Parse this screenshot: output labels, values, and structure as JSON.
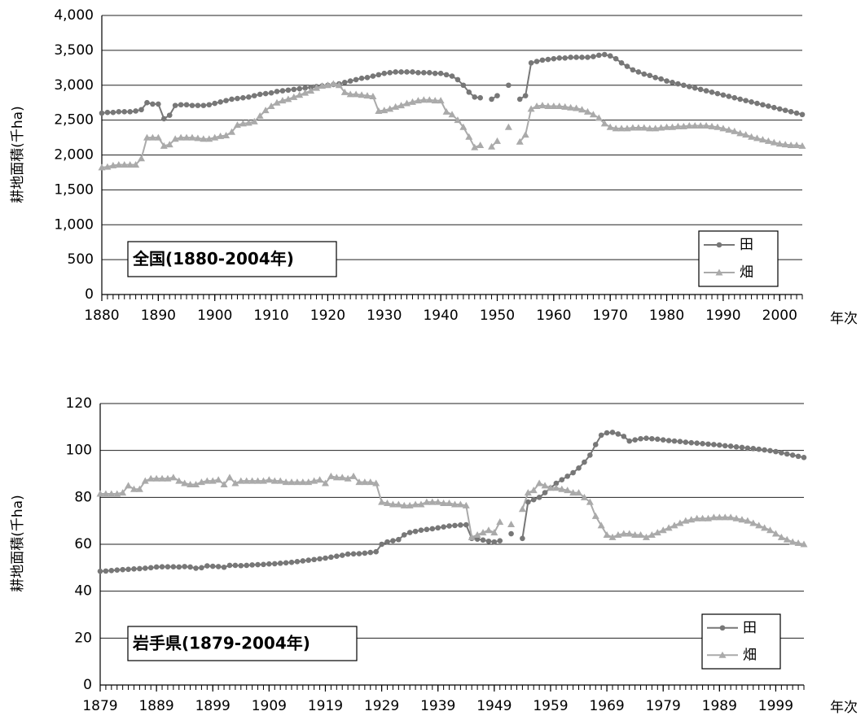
{
  "chart_data": [
    {
      "type": "line",
      "annotation": "全国(1880-2004年)",
      "xlabel": "年次",
      "ylabel": "耕地面積(千ha)",
      "xlim": [
        1880,
        2004
      ],
      "xticks": [
        1880,
        1890,
        1900,
        1910,
        1920,
        1930,
        1940,
        1950,
        1960,
        1970,
        1980,
        1990,
        2000
      ],
      "ylim": [
        0,
        4000
      ],
      "yticks": [
        0,
        500,
        {
          "value": 1000,
          "label": "1,000"
        },
        {
          "value": 1500,
          "label": "1,500"
        },
        {
          "value": 2000,
          "label": "2,000"
        },
        {
          "value": 2500,
          "label": "2,500"
        },
        {
          "value": 3000,
          "label": "3,000"
        },
        {
          "value": 3500,
          "label": "3,500"
        },
        {
          "value": 4000,
          "label": "4,000"
        }
      ],
      "grid": true,
      "legend": "lower right",
      "x": [
        1880,
        1881,
        1882,
        1883,
        1884,
        1885,
        1886,
        1887,
        1888,
        1889,
        1890,
        1891,
        1892,
        1893,
        1894,
        1895,
        1896,
        1897,
        1898,
        1899,
        1900,
        1901,
        1902,
        1903,
        1904,
        1905,
        1906,
        1907,
        1908,
        1909,
        1910,
        1911,
        1912,
        1913,
        1914,
        1915,
        1916,
        1917,
        1918,
        1919,
        1920,
        1921,
        1922,
        1923,
        1924,
        1925,
        1926,
        1927,
        1928,
        1929,
        1930,
        1931,
        1932,
        1933,
        1934,
        1935,
        1936,
        1937,
        1938,
        1939,
        1940,
        1941,
        1942,
        1943,
        1944,
        1945,
        1946,
        1947,
        1948,
        1949,
        1950,
        1951,
        1952,
        1953,
        1954,
        1955,
        1956,
        1957,
        1958,
        1959,
        1960,
        1961,
        1962,
        1963,
        1964,
        1965,
        1966,
        1967,
        1968,
        1969,
        1970,
        1971,
        1972,
        1973,
        1974,
        1975,
        1976,
        1977,
        1978,
        1979,
        1980,
        1981,
        1982,
        1983,
        1984,
        1985,
        1986,
        1987,
        1988,
        1989,
        1990,
        1991,
        1992,
        1993,
        1994,
        1995,
        1996,
        1997,
        1998,
        1999,
        2000,
        2001,
        2002,
        2003,
        2004
      ],
      "series": [
        {
          "name": "田",
          "color": "#777777",
          "marker": "circle",
          "values": [
            2600,
            2610,
            2610,
            2620,
            2620,
            2620,
            2630,
            2650,
            2750,
            2730,
            2730,
            2520,
            2570,
            2710,
            2720,
            2720,
            2710,
            2710,
            2710,
            2720,
            2740,
            2760,
            2780,
            2800,
            2810,
            2820,
            2830,
            2850,
            2870,
            2880,
            2890,
            2910,
            2920,
            2930,
            2940,
            2950,
            2960,
            2970,
            2980,
            2990,
            3000,
            3010,
            3020,
            3040,
            3060,
            3080,
            3100,
            3110,
            3130,
            3150,
            3170,
            3180,
            3190,
            3190,
            3190,
            3190,
            3180,
            3180,
            3180,
            3170,
            3170,
            3150,
            3130,
            3080,
            3000,
            2900,
            2830,
            2820,
            null,
            2800,
            2850,
            null,
            3000,
            null,
            2800,
            2850,
            3320,
            3340,
            3360,
            3370,
            3380,
            3390,
            3390,
            3400,
            3400,
            3400,
            3400,
            3410,
            3430,
            3440,
            3420,
            3380,
            3320,
            3270,
            3220,
            3190,
            3160,
            3140,
            3110,
            3090,
            3060,
            3040,
            3020,
            3000,
            2980,
            2960,
            2940,
            2920,
            2900,
            2880,
            2860,
            2840,
            2820,
            2800,
            2780,
            2760,
            2740,
            2720,
            2700,
            2680,
            2660,
            2640,
            2620,
            2600,
            2580
          ]
        },
        {
          "name": "畑",
          "color": "#aaaaaa",
          "marker": "triangle",
          "values": [
            1820,
            1830,
            1850,
            1860,
            1860,
            1860,
            1860,
            1950,
            2250,
            2250,
            2250,
            2130,
            2150,
            2230,
            2250,
            2250,
            2250,
            2240,
            2230,
            2230,
            2250,
            2270,
            2280,
            2330,
            2430,
            2450,
            2460,
            2480,
            2560,
            2640,
            2700,
            2750,
            2780,
            2800,
            2830,
            2860,
            2890,
            2920,
            2960,
            2990,
            3000,
            3020,
            3000,
            2900,
            2870,
            2870,
            2860,
            2850,
            2840,
            2630,
            2640,
            2660,
            2690,
            2710,
            2740,
            2760,
            2780,
            2790,
            2790,
            2780,
            2780,
            2620,
            2580,
            2500,
            2400,
            2260,
            2110,
            2140,
            null,
            2120,
            2200,
            null,
            2400,
            null,
            2190,
            2290,
            2660,
            2700,
            2710,
            2700,
            2700,
            2700,
            2690,
            2680,
            2670,
            2650,
            2620,
            2580,
            2530,
            2450,
            2400,
            2380,
            2380,
            2380,
            2390,
            2390,
            2390,
            2380,
            2380,
            2390,
            2400,
            2400,
            2410,
            2410,
            2420,
            2420,
            2420,
            2420,
            2410,
            2400,
            2380,
            2360,
            2340,
            2310,
            2290,
            2260,
            2240,
            2220,
            2200,
            2180,
            2160,
            2150,
            2140,
            2140,
            2130
          ]
        }
      ]
    },
    {
      "type": "line",
      "annotation": "岩手県(1879-2004年)",
      "xlabel": "年次",
      "ylabel": "耕地面積(千ha)",
      "xlim": [
        1879,
        2004
      ],
      "xticks": [
        1879,
        1889,
        1899,
        1909,
        1919,
        1929,
        1939,
        1949,
        1959,
        1969,
        1979,
        1989,
        1999
      ],
      "ylim": [
        0,
        120
      ],
      "yticks": [
        0,
        20,
        40,
        60,
        80,
        100,
        120
      ],
      "grid": true,
      "legend": "lower right",
      "x": [
        1879,
        1880,
        1881,
        1882,
        1883,
        1884,
        1885,
        1886,
        1887,
        1888,
        1889,
        1890,
        1891,
        1892,
        1893,
        1894,
        1895,
        1896,
        1897,
        1898,
        1899,
        1900,
        1901,
        1902,
        1903,
        1904,
        1905,
        1906,
        1907,
        1908,
        1909,
        1910,
        1911,
        1912,
        1913,
        1914,
        1915,
        1916,
        1917,
        1918,
        1919,
        1920,
        1921,
        1922,
        1923,
        1924,
        1925,
        1926,
        1927,
        1928,
        1929,
        1930,
        1931,
        1932,
        1933,
        1934,
        1935,
        1936,
        1937,
        1938,
        1939,
        1940,
        1941,
        1942,
        1943,
        1944,
        1945,
        1946,
        1947,
        1948,
        1949,
        1950,
        1951,
        1952,
        1953,
        1954,
        1955,
        1956,
        1957,
        1958,
        1959,
        1960,
        1961,
        1962,
        1963,
        1964,
        1965,
        1966,
        1967,
        1968,
        1969,
        1970,
        1971,
        1972,
        1973,
        1974,
        1975,
        1976,
        1977,
        1978,
        1979,
        1980,
        1981,
        1982,
        1983,
        1984,
        1985,
        1986,
        1987,
        1988,
        1989,
        1990,
        1991,
        1992,
        1993,
        1994,
        1995,
        1996,
        1997,
        1998,
        1999,
        2000,
        2001,
        2002,
        2003,
        2004
      ],
      "series": [
        {
          "name": "田",
          "color": "#777777",
          "marker": "circle",
          "values": [
            48.5,
            48.6,
            48.8,
            49,
            49.2,
            49.3,
            49.5,
            49.6,
            49.8,
            50,
            50.3,
            50.4,
            50.4,
            50.4,
            50.3,
            50.5,
            50.3,
            49.8,
            50,
            50.8,
            50.6,
            50.5,
            50.2,
            51,
            51,
            50.9,
            51,
            51.2,
            51.3,
            51.4,
            51.6,
            51.7,
            51.9,
            52.1,
            52.3,
            52.6,
            52.9,
            53.2,
            53.5,
            53.8,
            54.1,
            54.5,
            54.9,
            55.3,
            55.8,
            55.9,
            56,
            56.2,
            56.5,
            56.8,
            60,
            61,
            61.5,
            62,
            64,
            65,
            65.5,
            66,
            66.3,
            66.6,
            67,
            67.4,
            67.8,
            68,
            68.2,
            68.3,
            62.5,
            62.2,
            61.8,
            61.3,
            61,
            61.5,
            null,
            64.5,
            null,
            62.5,
            78,
            79,
            80,
            82,
            84,
            86,
            87.5,
            89,
            90.5,
            92.5,
            95,
            98,
            102.5,
            106.5,
            107.5,
            107.7,
            107,
            106,
            104,
            104.5,
            105,
            105.2,
            105,
            104.8,
            104.5,
            104.2,
            104,
            103.8,
            103.5,
            103.3,
            103.1,
            102.9,
            102.7,
            102.5,
            102.3,
            102,
            101.8,
            101.5,
            101.3,
            101,
            100.8,
            100.5,
            100.2,
            99.9,
            99.5,
            99,
            98.5,
            98,
            97.5,
            97
          ]
        },
        {
          "name": "畑",
          "color": "#aaaaaa",
          "marker": "triangle",
          "values": [
            81.5,
            81.5,
            81.5,
            81.5,
            82,
            85,
            83.5,
            83.5,
            87,
            88,
            88,
            88,
            88,
            88.5,
            87,
            86,
            85.5,
            85.5,
            86.5,
            87,
            87,
            87.5,
            85.5,
            88.5,
            86,
            87,
            87,
            87,
            87,
            87,
            87.5,
            87,
            87,
            86.5,
            86.5,
            86.5,
            86.5,
            86.5,
            87,
            87.5,
            86,
            89,
            88.5,
            88.5,
            88,
            89,
            86.5,
            86.5,
            86.5,
            86,
            78,
            77.5,
            77,
            77,
            76.5,
            76.5,
            77,
            77,
            78,
            78,
            78,
            77.5,
            77.5,
            77,
            77,
            76.5,
            63,
            64,
            65,
            66,
            65,
            69.5,
            null,
            68.5,
            null,
            75,
            82,
            83,
            86,
            85,
            84,
            84,
            83.5,
            83,
            82,
            82,
            80,
            78,
            72,
            68,
            64,
            63,
            64,
            64.5,
            64.5,
            64,
            64,
            63,
            64,
            65,
            66,
            67,
            68,
            69,
            70,
            70.5,
            71,
            71,
            71,
            71.5,
            71.5,
            71.5,
            71.5,
            71,
            70.5,
            70,
            69,
            68,
            67,
            66,
            64.5,
            63,
            62,
            61,
            60.5,
            60
          ]
        }
      ]
    }
  ]
}
